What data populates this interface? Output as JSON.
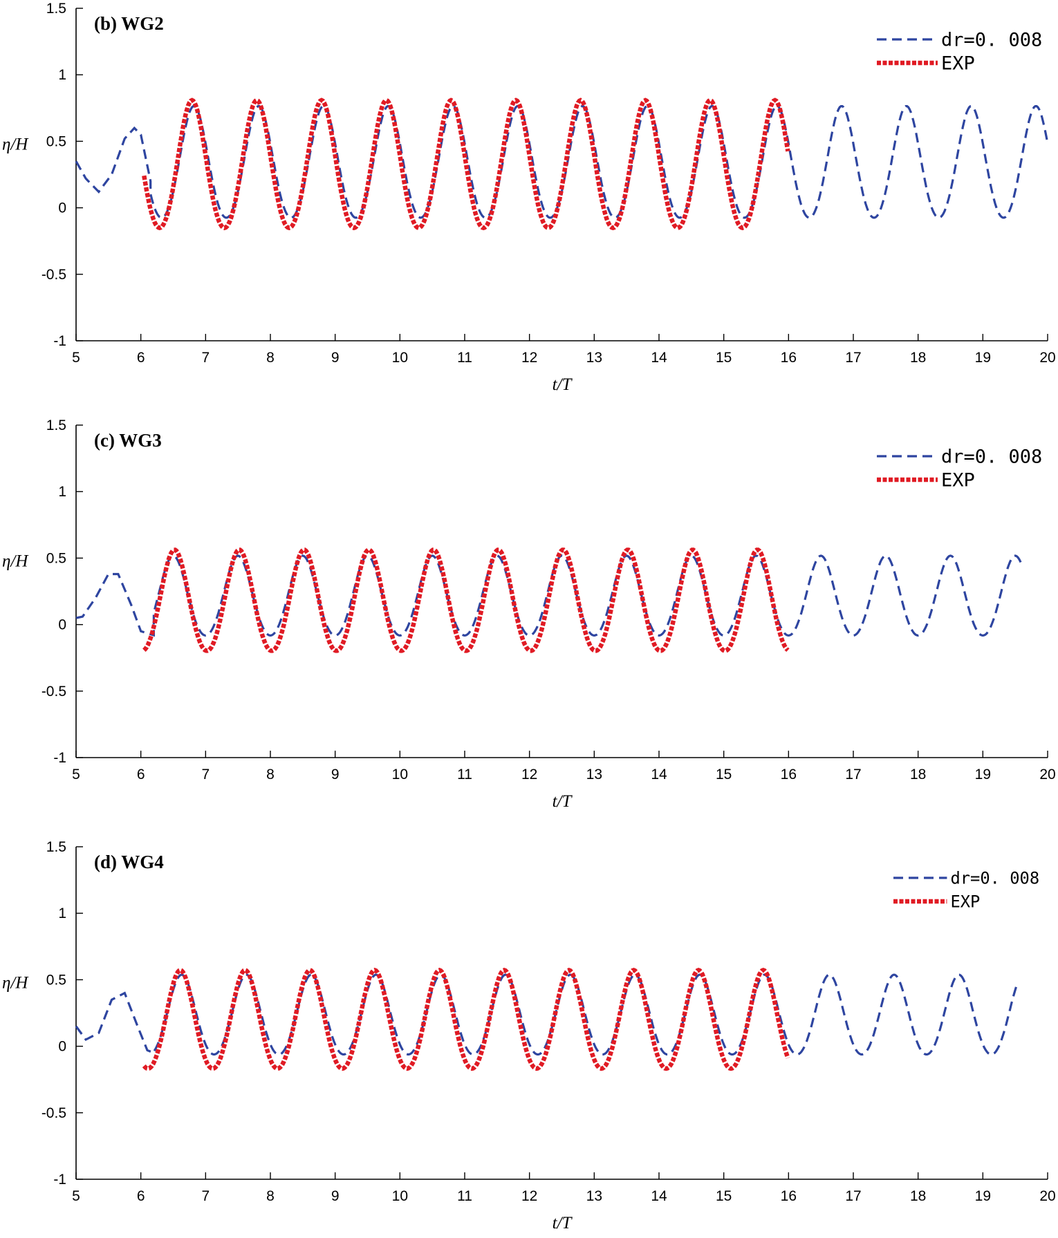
{
  "colors": {
    "sim": "#2e45a0",
    "exp": "#e01b24"
  },
  "chart_data": [
    {
      "type": "line",
      "title": "(b) WG2",
      "xlabel": "t/T",
      "ylabel": "η/H",
      "xlim": [
        5,
        20
      ],
      "ylim": [
        -1,
        1.5
      ],
      "xticks": [
        "5",
        "6",
        "7",
        "8",
        "9",
        "10",
        "11",
        "12",
        "13",
        "14",
        "15",
        "16",
        "17",
        "18",
        "19",
        "20"
      ],
      "yticks": [
        "-1",
        "-0.5",
        "0",
        "0.5",
        "1",
        "1.5"
      ],
      "legend_position": "top-right",
      "series": [
        {
          "name": "dr=0. 008",
          "style": "dashed",
          "color": "#2e45a0",
          "model": {
            "x_start": 5.0,
            "x_end": 20.0,
            "mean": 0.32,
            "amp": 0.42,
            "period": 1.0,
            "peak_phase": 0.82,
            "pre": {
              "x_end": 6.15,
              "points": [
                [
                  5.0,
                  0.35
                ],
                [
                  5.15,
                  0.22
                ],
                [
                  5.35,
                  0.12
                ],
                [
                  5.55,
                  0.25
                ],
                [
                  5.75,
                  0.52
                ],
                [
                  5.9,
                  0.6
                ],
                [
                  6.0,
                  0.55
                ],
                [
                  6.15,
                  0.2
                ]
              ]
            }
          }
        },
        {
          "name": "EXP",
          "style": "dotted-thick",
          "color": "#e01b24",
          "model": {
            "x_start": 6.05,
            "x_end": 16.0,
            "mean": 0.3,
            "amp": 0.48,
            "period": 1.0,
            "peak_phase": 0.79
          }
        }
      ]
    },
    {
      "type": "line",
      "title": "(c) WG3",
      "xlabel": "t/T",
      "ylabel": "η/H",
      "xlim": [
        5,
        20
      ],
      "ylim": [
        -1,
        1.5
      ],
      "xticks": [
        "5",
        "6",
        "7",
        "8",
        "9",
        "10",
        "11",
        "12",
        "13",
        "14",
        "15",
        "16",
        "17",
        "18",
        "19",
        "20"
      ],
      "yticks": [
        "-1",
        "-0.5",
        "0",
        "0.5",
        "1",
        "1.5"
      ],
      "legend_position": "top-right",
      "series": [
        {
          "name": "dr=0. 008",
          "style": "dashed",
          "color": "#2e45a0",
          "model": {
            "x_start": 5.0,
            "x_end": 19.6,
            "mean": 0.2,
            "amp": 0.3,
            "period": 1.0,
            "peak_phase": 0.5,
            "pre": {
              "x_end": 6.2,
              "points": [
                [
                  5.0,
                  0.05
                ],
                [
                  5.1,
                  0.06
                ],
                [
                  5.3,
                  0.2
                ],
                [
                  5.5,
                  0.38
                ],
                [
                  5.65,
                  0.38
                ],
                [
                  5.85,
                  0.15
                ],
                [
                  6.0,
                  -0.05
                ],
                [
                  6.2,
                  -0.08
                ]
              ]
            }
          }
        },
        {
          "name": "EXP",
          "style": "dotted-thick",
          "color": "#e01b24",
          "model": {
            "x_start": 6.05,
            "x_end": 16.0,
            "mean": 0.16,
            "amp": 0.38,
            "period": 1.0,
            "peak_phase": 0.52
          }
        }
      ]
    },
    {
      "type": "line",
      "title": "(d) WG4",
      "xlabel": "t/T",
      "ylabel": "η/H",
      "xlim": [
        5,
        20
      ],
      "ylim": [
        -1,
        1.5
      ],
      "xticks": [
        "5",
        "6",
        "7",
        "8",
        "9",
        "10",
        "11",
        "12",
        "13",
        "14",
        "15",
        "16",
        "17",
        "18",
        "19",
        "20"
      ],
      "yticks": [
        "-1",
        "-0.5",
        "0",
        "0.5",
        "1",
        "1.5"
      ],
      "legend_position": "top-right",
      "series": [
        {
          "name": "dr=0. 008",
          "style": "dashed",
          "color": "#2e45a0",
          "model": {
            "x_start": 5.0,
            "x_end": 19.55,
            "mean": 0.22,
            "amp": 0.3,
            "period": 1.0,
            "peak_phase": 0.63,
            "pre": {
              "x_end": 6.2,
              "points": [
                [
                  5.0,
                  0.15
                ],
                [
                  5.15,
                  0.05
                ],
                [
                  5.35,
                  0.1
                ],
                [
                  5.55,
                  0.35
                ],
                [
                  5.75,
                  0.4
                ],
                [
                  5.95,
                  0.15
                ],
                [
                  6.1,
                  -0.03
                ],
                [
                  6.2,
                  -0.05
                ]
              ]
            }
          }
        },
        {
          "name": "EXP",
          "style": "dotted-thick",
          "color": "#e01b24",
          "model": {
            "x_start": 6.05,
            "x_end": 16.0,
            "mean": 0.18,
            "amp": 0.37,
            "period": 1.0,
            "peak_phase": 0.61
          }
        }
      ]
    }
  ]
}
